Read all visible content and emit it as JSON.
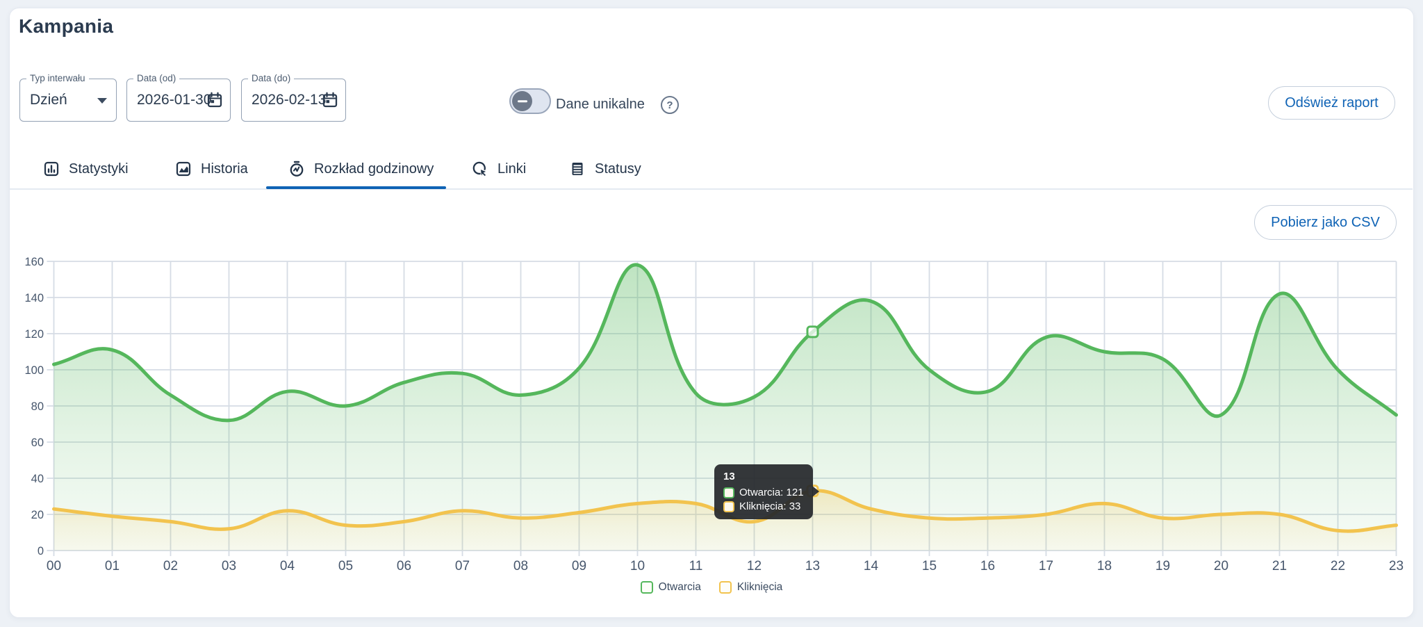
{
  "page": {
    "title": "Kampania"
  },
  "filters": {
    "interval": {
      "label": "Typ interwału",
      "value": "Dzień"
    },
    "date_from": {
      "label": "Data (od)",
      "value": "2026-01-30"
    },
    "date_to": {
      "label": "Data (do)",
      "value": "2026-02-13"
    },
    "unique_toggle": {
      "label": "Dane unikalne",
      "state": "off"
    },
    "refresh_button_label": "Odśwież raport",
    "help_glyph": "?"
  },
  "tabs": [
    {
      "label": "Statystyki",
      "icon": "bar-chart-icon",
      "active": false
    },
    {
      "label": "Historia",
      "icon": "area-chart-icon",
      "active": false
    },
    {
      "label": "Rozkład godzinowy",
      "icon": "stopwatch-icon",
      "active": true
    },
    {
      "label": "Linki",
      "icon": "click-icon",
      "active": false
    },
    {
      "label": "Statusy",
      "icon": "list-icon",
      "active": false
    }
  ],
  "toolbar": {
    "csv_button_label": "Pobierz jako CSV"
  },
  "chart_data": {
    "type": "area",
    "x": [
      "00",
      "01",
      "02",
      "03",
      "04",
      "05",
      "06",
      "07",
      "08",
      "09",
      "10",
      "11",
      "12",
      "13",
      "14",
      "15",
      "16",
      "17",
      "18",
      "19",
      "20",
      "21",
      "22",
      "23"
    ],
    "series": [
      {
        "name": "Otwarcia",
        "color": "#55b75c",
        "values": [
          103,
          111,
          86,
          72,
          88,
          80,
          93,
          98,
          86,
          101,
          158,
          87,
          85,
          121,
          138,
          100,
          88,
          118,
          110,
          106,
          75,
          142,
          100,
          75
        ]
      },
      {
        "name": "Kliknięcia",
        "color": "#f2c34e",
        "values": [
          23,
          19,
          16,
          12,
          22,
          14,
          16,
          22,
          18,
          21,
          26,
          26,
          16,
          33,
          23,
          18,
          18,
          20,
          26,
          18,
          20,
          20,
          11,
          14
        ]
      }
    ],
    "ylim": [
      0,
      160
    ],
    "ytick_step": 20,
    "grid": true,
    "legend_position": "bottom",
    "highlight_index": 13
  },
  "tooltip": {
    "title": "13",
    "rows": [
      {
        "series": "Otwarcia",
        "value": 121,
        "text": "Otwarcia: 121",
        "color": "#55b75c"
      },
      {
        "series": "Kliknięcia",
        "value": 33,
        "text": "Kliknięcia: 33",
        "color": "#f2c34e"
      }
    ]
  },
  "colors": {
    "accent_blue": "#0f63b5",
    "text_dark": "#2b3b4f",
    "grid": "#d6dce5"
  }
}
